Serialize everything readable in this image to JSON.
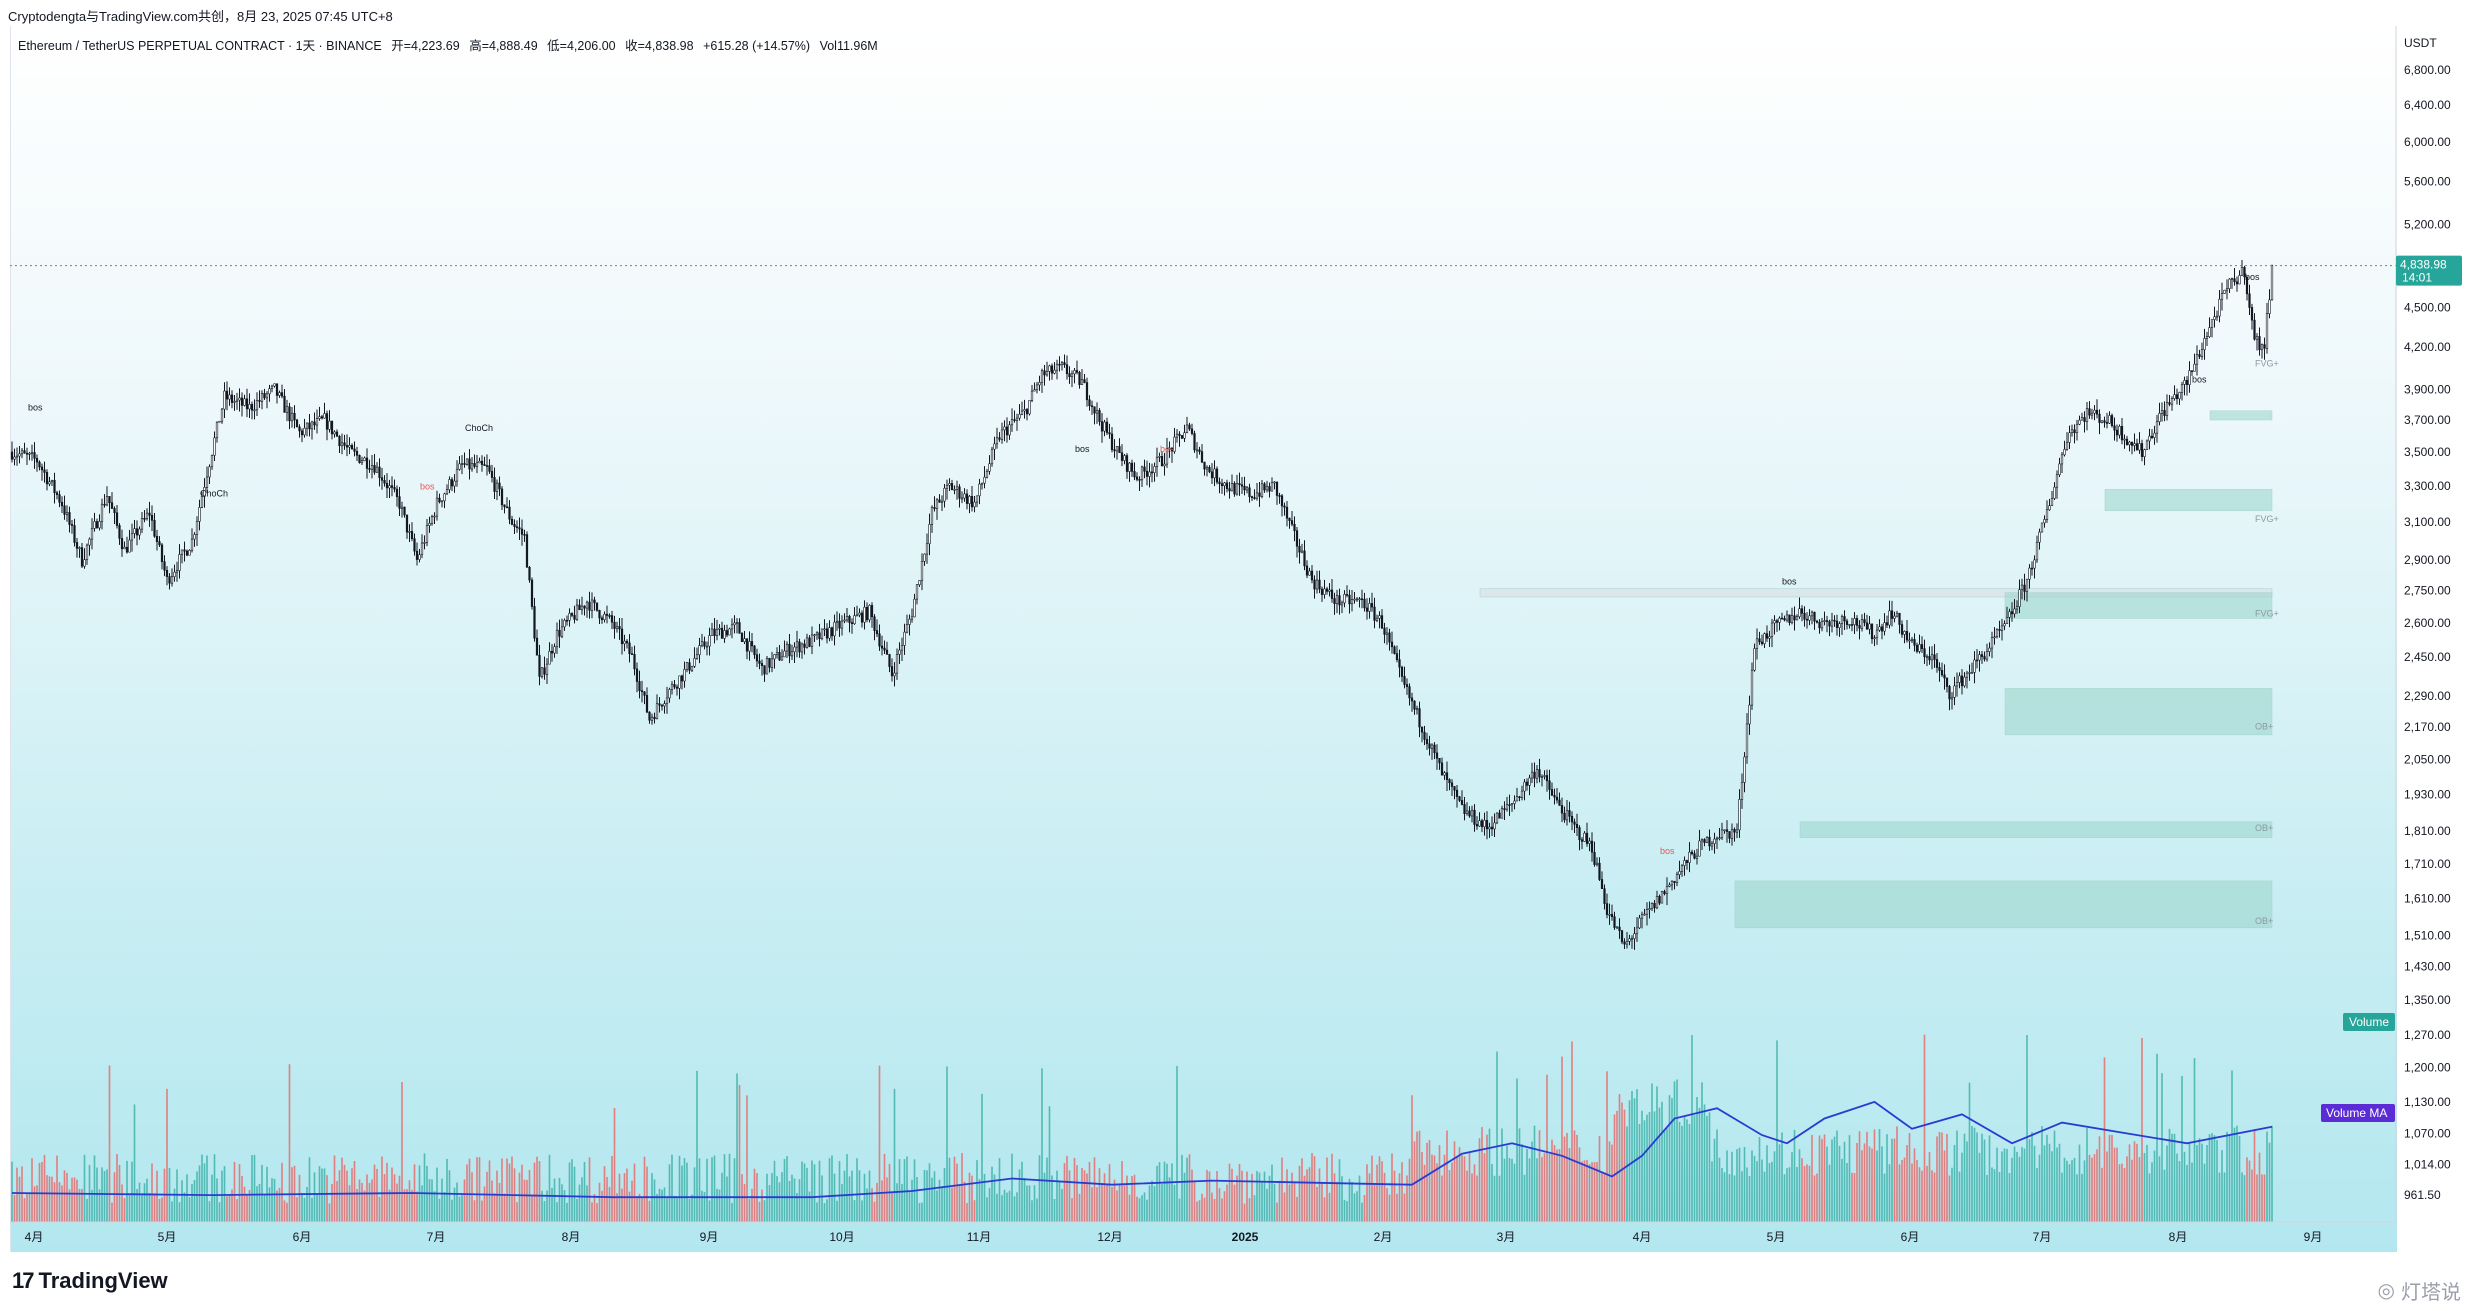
{
  "header": {
    "attribution": "Cryptodengta与TradingView.com共创，8月 23, 2025 07:45 UTC+8"
  },
  "legend": {
    "symbol": "Ethereum / TetherUS PERPETUAL CONTRACT · 1天 · BINANCE",
    "open": "开=4,223.69",
    "high": "高=4,888.49",
    "low": "低=4,206.00",
    "close": "收=4,838.98",
    "change": "+615.28 (+14.57%)",
    "volume": "Vol11.96M"
  },
  "price_axis": {
    "currency": "USDT",
    "last_price": "4,838.98",
    "countdown": "14:01",
    "volume_label": "Volume",
    "volume_ma_label": "Volume MA"
  },
  "footer": {
    "brand": "TradingView",
    "watermark": "灯塔说"
  },
  "colors": {
    "up": "#26a69a",
    "down": "#ef5350",
    "volume_ma": "#2a3bd1",
    "last_price_tag": "#26a69a",
    "volume_ma_tag": "#5b2bd6"
  },
  "chart_data": {
    "type": "candlestick",
    "title": "Ethereum / TetherUS PERPETUAL CONTRACT · 1天 · BINANCE",
    "x_axis": {
      "tick_labels": [
        "4月",
        "5月",
        "6月",
        "7月",
        "8月",
        "9月",
        "10月",
        "11月",
        "12月",
        "2025",
        "2月",
        "3月",
        "4月",
        "5月",
        "6月",
        "7月",
        "8月",
        "9月"
      ]
    },
    "y_axis": {
      "scale": "log",
      "tick_labels": [
        "6,800.00",
        "6,400.00",
        "6,000.00",
        "5,600.00",
        "5,200.00",
        "4,500.00",
        "4,200.00",
        "3,900.00",
        "3,700.00",
        "3,500.00",
        "3,300.00",
        "3,100.00",
        "2,900.00",
        "2,750.00",
        "2,600.00",
        "2,450.00",
        "2,290.00",
        "2,170.00",
        "2,050.00",
        "1,930.00",
        "1,810.00",
        "1,710.00",
        "1,610.00",
        "1,510.00",
        "1,430.00",
        "1,350.00",
        "1,270.00",
        "1,200.00",
        "1,130.00",
        "1,070.00",
        "1,014.00",
        "961.50"
      ],
      "ticks": [
        6800,
        6400,
        6000,
        5600,
        5200,
        4500,
        4200,
        3900,
        3700,
        3500,
        3300,
        3100,
        2900,
        2750,
        2600,
        2450,
        2290,
        2170,
        2050,
        1930,
        1810,
        1710,
        1610,
        1510,
        1430,
        1350,
        1270,
        1200,
        1130,
        1070,
        1014,
        961.5
      ]
    },
    "price_path": [
      [
        0,
        3500
      ],
      [
        10,
        3450
      ],
      [
        20,
        3200
      ],
      [
        28,
        2900
      ],
      [
        38,
        3250
      ],
      [
        45,
        2950
      ],
      [
        55,
        3150
      ],
      [
        62,
        2800
      ],
      [
        72,
        3000
      ],
      [
        78,
        3380
      ],
      [
        85,
        3850
      ],
      [
        95,
        3780
      ],
      [
        105,
        3900
      ],
      [
        115,
        3620
      ],
      [
        125,
        3700
      ],
      [
        135,
        3500
      ],
      [
        145,
        3420
      ],
      [
        155,
        3200
      ],
      [
        162,
        2900
      ],
      [
        170,
        3200
      ],
      [
        180,
        3420
      ],
      [
        190,
        3400
      ],
      [
        200,
        3100
      ],
      [
        205,
        3020
      ],
      [
        211,
        2350
      ],
      [
        218,
        2550
      ],
      [
        230,
        2700
      ],
      [
        240,
        2600
      ],
      [
        248,
        2450
      ],
      [
        255,
        2200
      ],
      [
        262,
        2300
      ],
      [
        270,
        2400
      ],
      [
        280,
        2550
      ],
      [
        290,
        2580
      ],
      [
        300,
        2400
      ],
      [
        310,
        2480
      ],
      [
        320,
        2520
      ],
      [
        333,
        2600
      ],
      [
        343,
        2650
      ],
      [
        352,
        2380
      ],
      [
        360,
        2650
      ],
      [
        368,
        3150
      ],
      [
        375,
        3300
      ],
      [
        385,
        3200
      ],
      [
        395,
        3600
      ],
      [
        405,
        3750
      ],
      [
        412,
        4000
      ],
      [
        420,
        4050
      ],
      [
        428,
        3950
      ],
      [
        435,
        3700
      ],
      [
        442,
        3500
      ],
      [
        450,
        3350
      ],
      [
        460,
        3450
      ],
      [
        470,
        3650
      ],
      [
        478,
        3400
      ],
      [
        486,
        3300
      ],
      [
        496,
        3250
      ],
      [
        505,
        3300
      ],
      [
        512,
        3050
      ],
      [
        520,
        2800
      ],
      [
        530,
        2700
      ],
      [
        540,
        2700
      ],
      [
        548,
        2600
      ],
      [
        556,
        2350
      ],
      [
        565,
        2150
      ],
      [
        572,
        2000
      ],
      [
        580,
        1880
      ],
      [
        590,
        1820
      ],
      [
        600,
        1900
      ],
      [
        610,
        2020
      ],
      [
        618,
        1900
      ],
      [
        625,
        1820
      ],
      [
        632,
        1760
      ],
      [
        638,
        1580
      ],
      [
        645,
        1480
      ],
      [
        652,
        1550
      ],
      [
        660,
        1620
      ],
      [
        668,
        1700
      ],
      [
        675,
        1760
      ],
      [
        682,
        1800
      ],
      [
        690,
        1810
      ],
      [
        697,
        2500
      ],
      [
        705,
        2580
      ],
      [
        715,
        2650
      ],
      [
        725,
        2600
      ],
      [
        735,
        2620
      ],
      [
        745,
        2550
      ],
      [
        752,
        2650
      ],
      [
        760,
        2500
      ],
      [
        768,
        2450
      ],
      [
        775,
        2300
      ],
      [
        782,
        2380
      ],
      [
        790,
        2480
      ],
      [
        798,
        2600
      ],
      [
        806,
        2800
      ],
      [
        815,
        3200
      ],
      [
        822,
        3600
      ],
      [
        830,
        3750
      ],
      [
        838,
        3700
      ],
      [
        845,
        3600
      ],
      [
        852,
        3500
      ],
      [
        860,
        3750
      ],
      [
        870,
        3950
      ],
      [
        878,
        4300
      ],
      [
        886,
        4650
      ],
      [
        893,
        4800
      ],
      [
        897,
        4250
      ],
      [
        901,
        4200
      ],
      [
        904,
        4840
      ]
    ],
    "volume_ma_path": [
      [
        0,
        0.14
      ],
      [
        80,
        0.13
      ],
      [
        160,
        0.14
      ],
      [
        240,
        0.12
      ],
      [
        320,
        0.12
      ],
      [
        360,
        0.15
      ],
      [
        400,
        0.21
      ],
      [
        440,
        0.18
      ],
      [
        480,
        0.2
      ],
      [
        520,
        0.19
      ],
      [
        560,
        0.18
      ],
      [
        580,
        0.33
      ],
      [
        600,
        0.38
      ],
      [
        620,
        0.32
      ],
      [
        640,
        0.22
      ],
      [
        652,
        0.32
      ],
      [
        665,
        0.5
      ],
      [
        682,
        0.55
      ],
      [
        700,
        0.42
      ],
      [
        710,
        0.38
      ],
      [
        725,
        0.5
      ],
      [
        745,
        0.58
      ],
      [
        760,
        0.45
      ],
      [
        780,
        0.52
      ],
      [
        800,
        0.38
      ],
      [
        820,
        0.48
      ],
      [
        845,
        0.43
      ],
      [
        870,
        0.38
      ],
      [
        904,
        0.46
      ]
    ],
    "annotations": [
      "bos",
      "ChoCh",
      "FVG+",
      "OB+"
    ]
  }
}
